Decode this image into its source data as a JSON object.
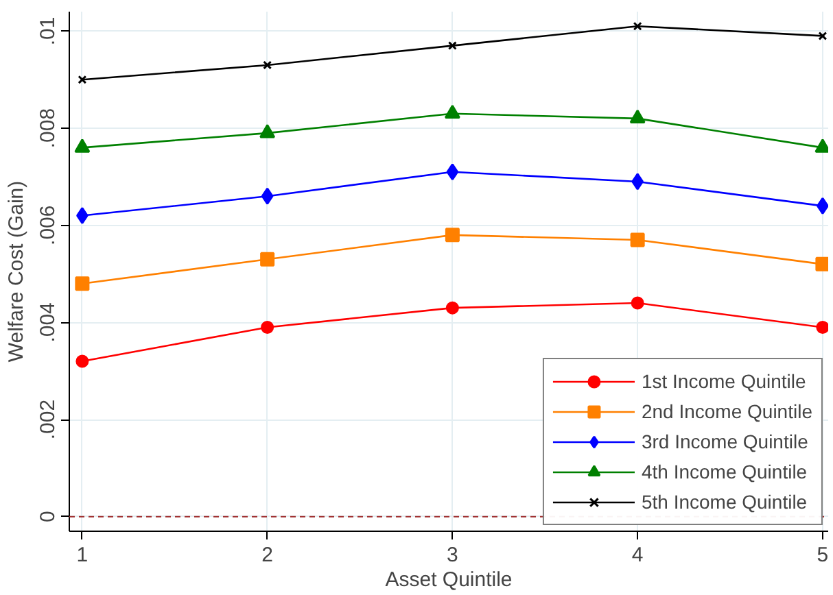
{
  "chart_data": {
    "type": "line",
    "xlabel": "Asset Quintile",
    "ylabel": "Welfare Cost (Gain)",
    "x": [
      1,
      2,
      3,
      4,
      5
    ],
    "series": [
      {
        "name": "1st Income Quintile",
        "color": "#ff0000",
        "marker": "circle",
        "values": [
          0.0032,
          0.0039,
          0.0043,
          0.0044,
          0.0039
        ]
      },
      {
        "name": "2nd Income Quintile",
        "color": "#ff8000",
        "marker": "square",
        "values": [
          0.0048,
          0.0053,
          0.0058,
          0.0057,
          0.0052
        ]
      },
      {
        "name": "3rd Income Quintile",
        "color": "#0000ff",
        "marker": "diamond",
        "values": [
          0.0062,
          0.0066,
          0.0071,
          0.0069,
          0.0064
        ]
      },
      {
        "name": "4th Income Quintile",
        "color": "#008000",
        "marker": "triangle",
        "values": [
          0.0076,
          0.0079,
          0.0083,
          0.0082,
          0.0076
        ]
      },
      {
        "name": "5th Income Quintile",
        "color": "#000000",
        "marker": "cross",
        "values": [
          0.009,
          0.0093,
          0.0097,
          0.0101,
          0.0099
        ]
      }
    ],
    "xlim": [
      0.93,
      5.03
    ],
    "ylim": [
      -0.0003,
      0.0104
    ],
    "xticks": [
      1,
      2,
      3,
      4,
      5
    ],
    "yticks": [
      {
        "value": 0,
        "label": "0"
      },
      {
        "value": 0.002,
        "label": ".002"
      },
      {
        "value": 0.004,
        "label": ".004"
      },
      {
        "value": 0.006,
        "label": ".006"
      },
      {
        "value": 0.008,
        "label": ".008"
      },
      {
        "value": 0.01,
        "label": ".01"
      }
    ],
    "ref_lines": [
      {
        "axis": "y",
        "value": 0,
        "label": null,
        "color": "#a03030",
        "line_style": "dashed"
      }
    ],
    "grid": true,
    "legend": "bottom right",
    "line_style": "solid"
  }
}
